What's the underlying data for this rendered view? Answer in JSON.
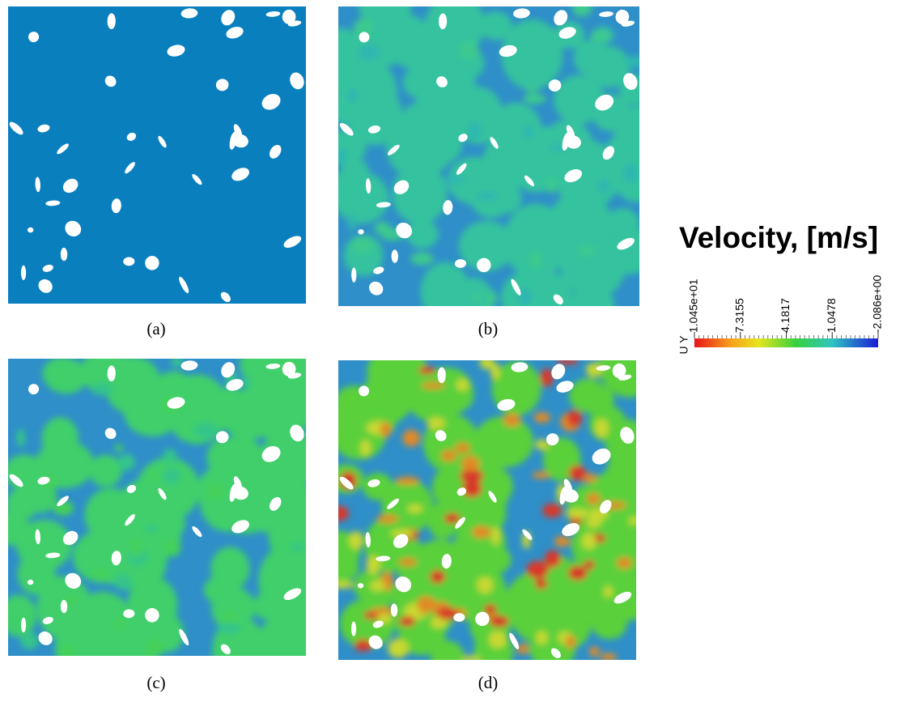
{
  "panels": [
    {
      "label": "(a)"
    },
    {
      "label": "(b)"
    },
    {
      "label": "(c)"
    },
    {
      "label": "(d)"
    }
  ],
  "colorbar": {
    "title": "Velocity, [m/s]",
    "label": "U Y",
    "range": [
      10.45,
      -2.086
    ],
    "ticks": [
      {
        "value": 10.45,
        "label": "1.045e+01"
      },
      7.3155,
      4.1817,
      1.0478,
      {
        "value": -2.086,
        "label": "-2.086e+00"
      }
    ]
  }
}
